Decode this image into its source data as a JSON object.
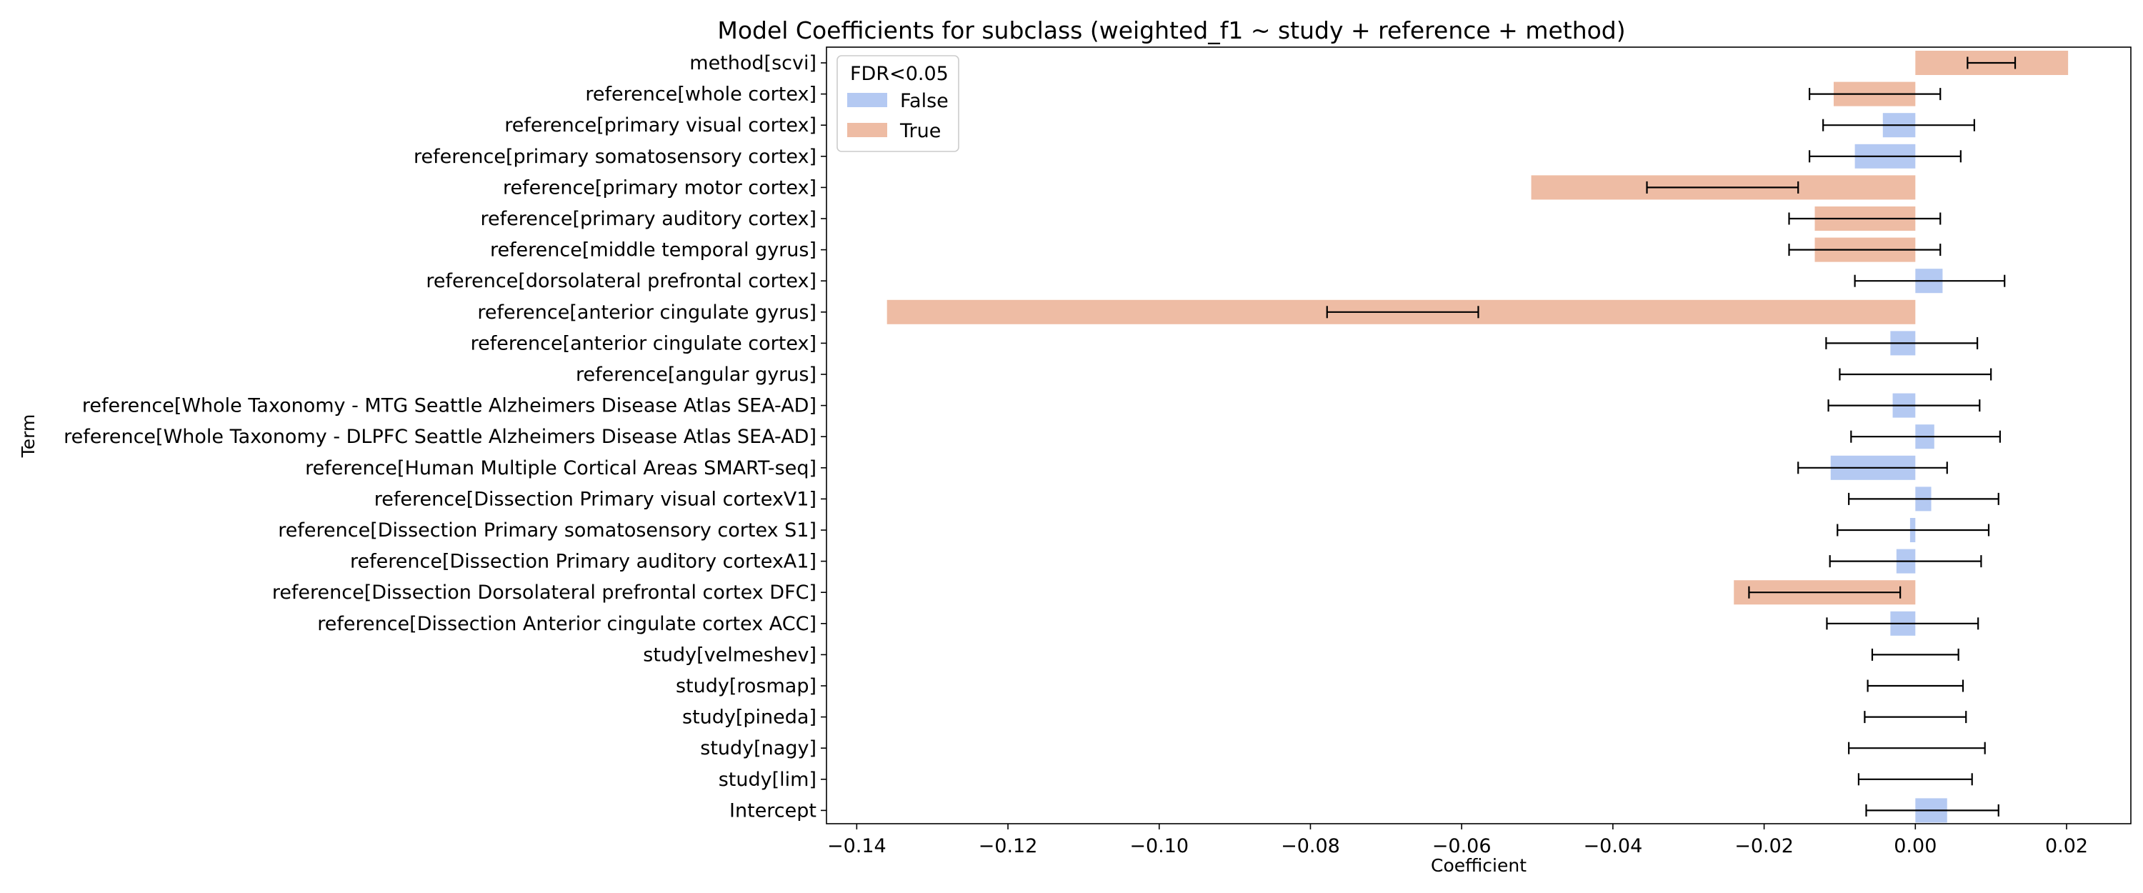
{
  "chart_data": {
    "type": "bar",
    "orientation": "horizontal",
    "title": "Model Coefficients for subclass (weighted_f1 ~ study + reference + method)",
    "xlabel": "Coefficient",
    "ylabel": "Term",
    "xlim": [
      -0.144,
      0.0285
    ],
    "xticks": [
      -0.14,
      -0.12,
      -0.1,
      -0.08,
      -0.06,
      -0.04,
      -0.02,
      0.0,
      0.02
    ],
    "xtick_labels": [
      "−0.14",
      "−0.12",
      "−0.10",
      "−0.08",
      "−0.06",
      "−0.04",
      "−0.02",
      "0.00",
      "0.02"
    ],
    "grid": false,
    "legend": {
      "title": "FDR<0.05",
      "position": "top-left",
      "entries": [
        {
          "label": "False",
          "color": "#b4c9f2"
        },
        {
          "label": "True",
          "color": "#eebca4"
        }
      ]
    },
    "colors": {
      "False": "#b4c9f2",
      "True": "#eebca4"
    },
    "terms": [
      {
        "label": "method[scvi]",
        "value": 0.0202,
        "err_low": 0.0069,
        "err_high": 0.0132,
        "fdr": "True"
      },
      {
        "label": "reference[whole cortex]",
        "value": -0.0108,
        "err_low": -0.014,
        "err_high": 0.0033,
        "fdr": "True"
      },
      {
        "label": "reference[primary visual cortex]",
        "value": -0.0043,
        "err_low": -0.0122,
        "err_high": 0.0078,
        "fdr": "False"
      },
      {
        "label": "reference[primary somatosensory cortex]",
        "value": -0.008,
        "err_low": -0.014,
        "err_high": 0.006,
        "fdr": "False"
      },
      {
        "label": "reference[primary motor cortex]",
        "value": -0.0508,
        "err_low": -0.0355,
        "err_high": -0.0155,
        "fdr": "True"
      },
      {
        "label": "reference[primary auditory cortex]",
        "value": -0.0133,
        "err_low": -0.0167,
        "err_high": 0.0033,
        "fdr": "True"
      },
      {
        "label": "reference[middle temporal gyrus]",
        "value": -0.0133,
        "err_low": -0.0167,
        "err_high": 0.0033,
        "fdr": "True"
      },
      {
        "label": "reference[dorsolateral prefrontal cortex]",
        "value": 0.0036,
        "err_low": -0.008,
        "err_high": 0.0118,
        "fdr": "False"
      },
      {
        "label": "reference[anterior cingulate gyrus]",
        "value": -0.136,
        "err_low": -0.0778,
        "err_high": -0.0578,
        "fdr": "True"
      },
      {
        "label": "reference[anterior cingulate cortex]",
        "value": -0.0033,
        "err_low": -0.0118,
        "err_high": 0.0082,
        "fdr": "False"
      },
      {
        "label": "reference[angular gyrus]",
        "value": 0.0,
        "err_low": -0.01,
        "err_high": 0.01,
        "fdr": "False"
      },
      {
        "label": "reference[Whole Taxonomy - MTG Seattle Alzheimers Disease Atlas SEA-AD]",
        "value": -0.003,
        "err_low": -0.0115,
        "err_high": 0.0085,
        "fdr": "False"
      },
      {
        "label": "reference[Whole Taxonomy - DLPFC Seattle Alzheimers Disease Atlas SEA-AD]",
        "value": 0.0025,
        "err_low": -0.0085,
        "err_high": 0.0112,
        "fdr": "False"
      },
      {
        "label": "reference[Human Multiple Cortical Areas SMART-seq]",
        "value": -0.0112,
        "err_low": -0.0155,
        "err_high": 0.0042,
        "fdr": "False"
      },
      {
        "label": "reference[Dissection Primary visual cortexV1]",
        "value": 0.0021,
        "err_low": -0.0088,
        "err_high": 0.011,
        "fdr": "False"
      },
      {
        "label": "reference[Dissection Primary somatosensory cortex S1]",
        "value": -0.0007,
        "err_low": -0.0103,
        "err_high": 0.0097,
        "fdr": "False"
      },
      {
        "label": "reference[Dissection Primary auditory cortexA1]",
        "value": -0.0025,
        "err_low": -0.0113,
        "err_high": 0.0087,
        "fdr": "False"
      },
      {
        "label": "reference[Dissection Dorsolateral prefrontal cortex DFC]",
        "value": -0.024,
        "err_low": -0.022,
        "err_high": -0.002,
        "fdr": "True"
      },
      {
        "label": "reference[Dissection Anterior cingulate cortex ACC]",
        "value": -0.0033,
        "err_low": -0.0117,
        "err_high": 0.0083,
        "fdr": "False"
      },
      {
        "label": "study[velmeshev]",
        "value": 0.0,
        "err_low": -0.0057,
        "err_high": 0.0057,
        "fdr": "False"
      },
      {
        "label": "study[rosmap]",
        "value": 0.0,
        "err_low": -0.0063,
        "err_high": 0.0063,
        "fdr": "False"
      },
      {
        "label": "study[pineda]",
        "value": 0.0,
        "err_low": -0.0067,
        "err_high": 0.0067,
        "fdr": "False"
      },
      {
        "label": "study[nagy]",
        "value": 0.0,
        "err_low": -0.0088,
        "err_high": 0.0092,
        "fdr": "False"
      },
      {
        "label": "study[lim]",
        "value": 0.0,
        "err_low": -0.0075,
        "err_high": 0.0075,
        "fdr": "False"
      },
      {
        "label": "Intercept",
        "value": 0.0042,
        "err_low": -0.0065,
        "err_high": 0.011,
        "fdr": "False"
      }
    ]
  }
}
